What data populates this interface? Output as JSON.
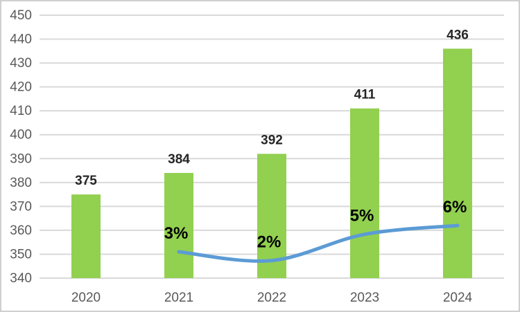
{
  "frame": {
    "background": "#ffffff",
    "border_color": "#cfcfcf"
  },
  "chart_data": {
    "type": "combo",
    "categories": [
      "2020",
      "2021",
      "2022",
      "2023",
      "2024"
    ],
    "series": [
      {
        "name": "annual-value-bars",
        "type": "bar",
        "values": [
          375,
          384,
          392,
          411,
          436
        ],
        "data_labels": [
          "375",
          "384",
          "392",
          "411",
          "436"
        ],
        "color": "#92d050",
        "label_color": "#262626",
        "axis": "primary"
      },
      {
        "name": "growth-percent-line",
        "type": "line",
        "values": [
          null,
          3,
          2,
          5,
          6
        ],
        "data_labels": [
          null,
          "3%",
          "2%",
          "5%",
          "6%"
        ],
        "color": "#5b9bd5",
        "label_color": "#000000",
        "axis": "secondary",
        "smooth": true,
        "stroke_width": 5
      }
    ],
    "title": "",
    "xlabel": "",
    "ylabel": "",
    "ylim": [
      340,
      450
    ],
    "ytick_step": 10,
    "yticks": [
      340,
      350,
      360,
      370,
      380,
      390,
      400,
      410,
      420,
      430,
      440,
      450
    ],
    "ytick_labels": [
      "340",
      "350",
      "360",
      "370",
      "380",
      "390",
      "400",
      "410",
      "420",
      "430",
      "440",
      "450"
    ],
    "secondary_ylim": [
      0,
      30
    ],
    "secondary_axis_visible": false,
    "grid": true,
    "grid_color": "#d9d9d9",
    "tick_label_color": "#595959",
    "legend": "none"
  }
}
